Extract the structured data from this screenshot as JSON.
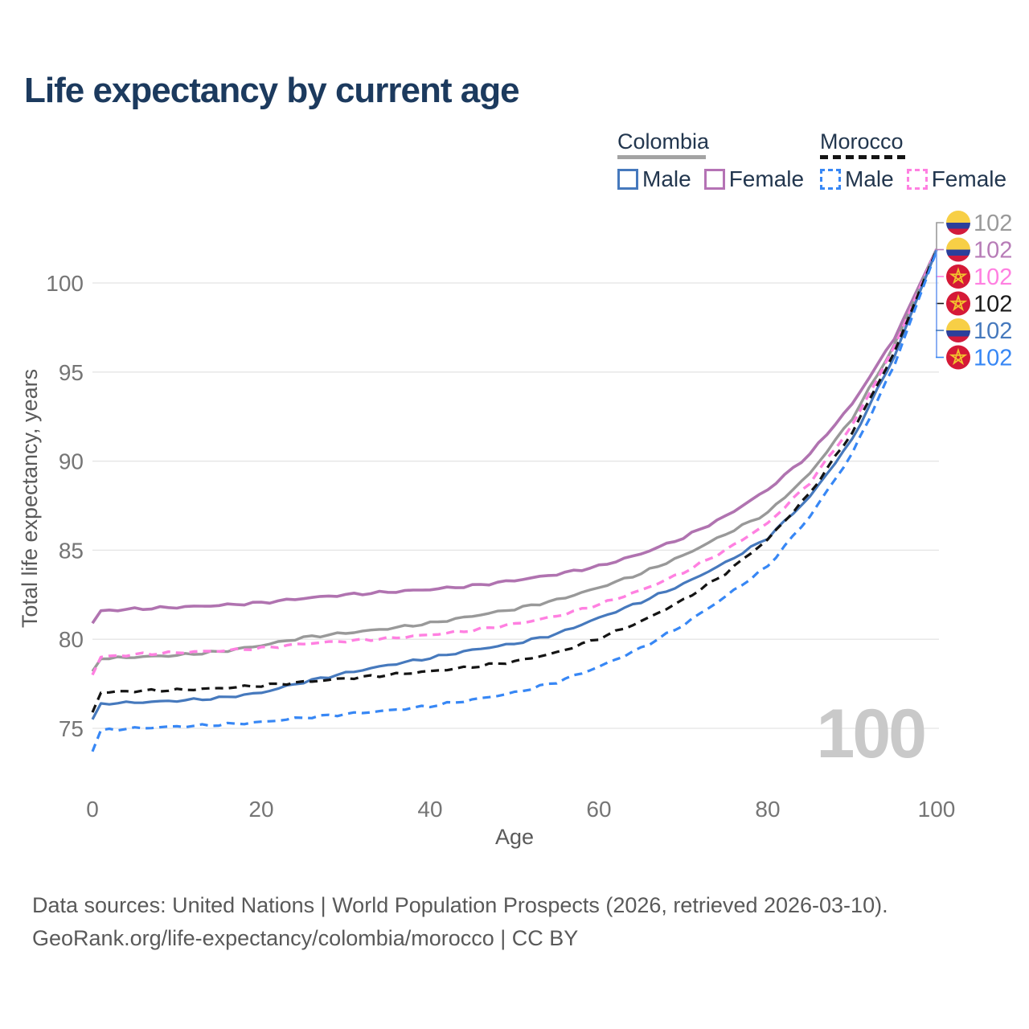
{
  "title": "Life expectancy by current age",
  "watermark": "100",
  "legend": {
    "groups": [
      {
        "name": "Colombia",
        "line_style": "solid",
        "underline_color": "#a3a3a3",
        "items": [
          {
            "label": "Male",
            "color": "#4679bd"
          },
          {
            "label": "Female",
            "color": "#b573b5"
          }
        ]
      },
      {
        "name": "Morocco",
        "line_style": "dashed",
        "underline_color": "#141414",
        "items": [
          {
            "label": "Male",
            "color": "#3787f5"
          },
          {
            "label": "Female",
            "color": "#ff80e1"
          }
        ]
      }
    ]
  },
  "chart_data": {
    "type": "line",
    "title": "Life expectancy by current age",
    "xlabel": "Age",
    "ylabel": "Total life expectancy, years",
    "x_ticks": [
      0,
      20,
      40,
      60,
      80,
      100
    ],
    "y_ticks": [
      75,
      80,
      85,
      90,
      95,
      100
    ],
    "xlim": [
      0,
      100
    ],
    "ylim": [
      73,
      102.5
    ],
    "grid": true,
    "legend_position": "top-right",
    "x": [
      0,
      1,
      5,
      10,
      15,
      20,
      25,
      30,
      35,
      40,
      45,
      50,
      55,
      60,
      65,
      70,
      75,
      80,
      85,
      90,
      95,
      100
    ],
    "series": [
      {
        "id": "colombia-female",
        "name": "Colombia Female",
        "country": "Colombia",
        "sex": "Female",
        "color": "#b073b0",
        "dash": false,
        "width": 3.6,
        "values": [
          80.9,
          81.6,
          81.7,
          81.8,
          81.9,
          82.05,
          82.3,
          82.5,
          82.65,
          82.8,
          83.0,
          83.3,
          83.65,
          84.1,
          84.8,
          85.7,
          86.9,
          88.4,
          90.4,
          93.2,
          96.9,
          101.9
        ]
      },
      {
        "id": "colombia-total",
        "name": "Colombia Both sexes",
        "country": "Colombia",
        "sex": "Both",
        "color": "#999999",
        "dash": false,
        "width": 3.4,
        "values": [
          78.2,
          78.9,
          79.0,
          79.1,
          79.3,
          79.65,
          80.1,
          80.35,
          80.6,
          80.9,
          81.3,
          81.7,
          82.2,
          82.9,
          83.7,
          84.7,
          85.9,
          87.1,
          89.3,
          92.4,
          96.5,
          101.9
        ]
      },
      {
        "id": "morocco-female",
        "name": "Morocco Female",
        "country": "Morocco",
        "sex": "Female",
        "color": "#ff80e1",
        "dash": true,
        "width": 3.4,
        "values": [
          78.0,
          79.0,
          79.15,
          79.25,
          79.35,
          79.5,
          79.75,
          79.9,
          80.05,
          80.25,
          80.5,
          80.85,
          81.3,
          81.95,
          82.75,
          83.75,
          85.0,
          86.5,
          88.8,
          92.0,
          96.4,
          101.9
        ]
      },
      {
        "id": "colombia-male",
        "name": "Colombia Male",
        "country": "Colombia",
        "sex": "Male",
        "color": "#4679bd",
        "dash": false,
        "width": 3.2,
        "values": [
          75.5,
          76.4,
          76.45,
          76.55,
          76.7,
          77.0,
          77.6,
          78.1,
          78.55,
          78.95,
          79.4,
          79.75,
          80.3,
          81.2,
          82.1,
          83.1,
          84.3,
          85.7,
          88.0,
          91.2,
          95.9,
          101.85
        ]
      },
      {
        "id": "morocco-total",
        "name": "Morocco Both sexes",
        "country": "Morocco",
        "sex": "Both",
        "color": "#141414",
        "dash": true,
        "width": 3.2,
        "values": [
          75.9,
          77.0,
          77.1,
          77.15,
          77.25,
          77.4,
          77.6,
          77.8,
          78.0,
          78.2,
          78.45,
          78.75,
          79.25,
          80.05,
          81.0,
          82.2,
          83.7,
          85.6,
          88.2,
          91.6,
          96.1,
          101.85
        ]
      },
      {
        "id": "morocco-male",
        "name": "Morocco Male",
        "country": "Morocco",
        "sex": "Male",
        "color": "#3787f5",
        "dash": true,
        "width": 3.2,
        "values": [
          73.7,
          74.9,
          75.0,
          75.1,
          75.2,
          75.35,
          75.6,
          75.8,
          76.0,
          76.25,
          76.6,
          77.0,
          77.6,
          78.45,
          79.5,
          80.8,
          82.4,
          84.1,
          86.9,
          90.4,
          95.4,
          101.8
        ]
      }
    ],
    "end_labels": [
      {
        "series": "colombia-total",
        "flag": "colombia",
        "label": "102",
        "color": "#9a9a9a"
      },
      {
        "series": "colombia-female",
        "flag": "colombia",
        "label": "102",
        "color": "#b77cb7"
      },
      {
        "series": "morocco-female",
        "flag": "morocco",
        "label": "102",
        "color": "#ff80e1"
      },
      {
        "series": "morocco-total",
        "flag": "morocco",
        "label": "102",
        "color": "#1a1a1a"
      },
      {
        "series": "colombia-male",
        "flag": "colombia",
        "label": "102",
        "color": "#4679bd"
      },
      {
        "series": "morocco-male",
        "flag": "morocco",
        "label": "102",
        "color": "#3787f5"
      }
    ],
    "flag_colors": {
      "colombia": {
        "yellow": "#f7cf46",
        "blue": "#2b3f9b",
        "red": "#d21a3c"
      },
      "morocco": {
        "red": "#d51937",
        "star": "#f2c22e"
      }
    },
    "gridline_color": "#e4e4e4"
  },
  "footer": {
    "line1": "Data sources: United Nations | World Population Prospects (2026, retrieved 2026-03-10).",
    "line2": "GeoRank.org/life-expectancy/colombia/morocco | CC BY"
  }
}
